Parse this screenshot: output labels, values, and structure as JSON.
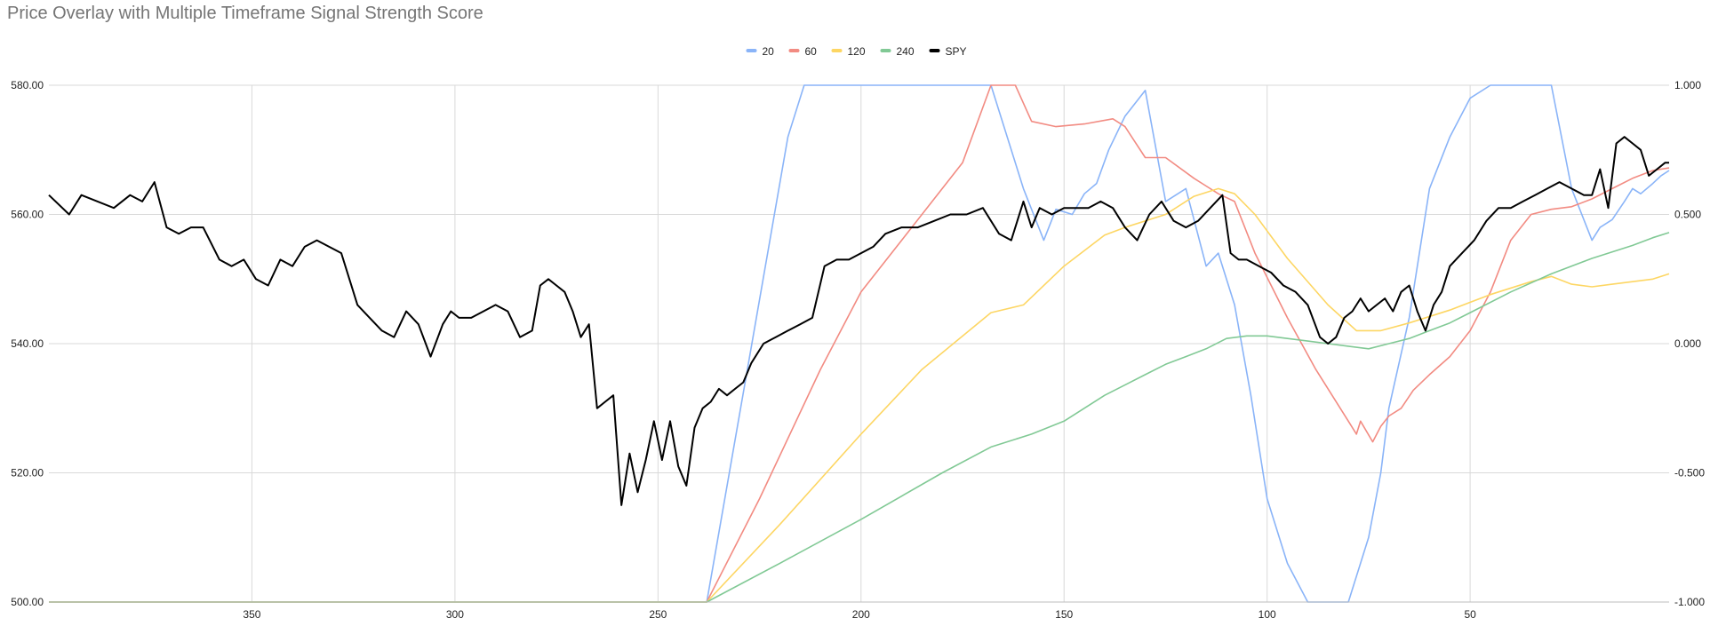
{
  "chart_data": {
    "type": "line",
    "title": "Price Overlay with Multiple Timeframe Signal Strength Score",
    "xlabel": "",
    "ylabel": "",
    "x_reversed": true,
    "xlim": [
      400,
      1
    ],
    "x_ticks": [
      350,
      300,
      250,
      200,
      150,
      100,
      50
    ],
    "x_tick_labels": [
      "350",
      "300",
      "250",
      "200",
      "150",
      "100",
      "50"
    ],
    "y_left": {
      "lim": [
        500,
        580
      ],
      "ticks": [
        500,
        520,
        540,
        560,
        580
      ],
      "tick_labels": [
        "500.00",
        "520.00",
        "540.00",
        "560.00",
        "580.00"
      ]
    },
    "y_right": {
      "lim": [
        -1,
        1
      ],
      "ticks": [
        -1,
        -0.5,
        0,
        0.5,
        1
      ],
      "tick_labels": [
        "-1.000",
        "-0.500",
        "0.000",
        "0.500",
        "1.000"
      ]
    },
    "grid": true,
    "legend_position": "top-center",
    "series": [
      {
        "name": "20",
        "axis": "right",
        "color": "#8ab4f8",
        "x": [
          400,
          238,
          228,
          218,
          214,
          200,
          180,
          168,
          160,
          155,
          152,
          148,
          145,
          142,
          139,
          135,
          130,
          125,
          120,
          115,
          112,
          108,
          104,
          100,
          95,
          90,
          85,
          80,
          75,
          72,
          70,
          65,
          60,
          55,
          50,
          45,
          40,
          35,
          30,
          25,
          20,
          18,
          15,
          12,
          10,
          8,
          5,
          3,
          1
        ],
        "y": [
          -1,
          -1,
          -0.1,
          0.8,
          1,
          1,
          1,
          1,
          0.6,
          0.4,
          0.52,
          0.5,
          0.58,
          0.62,
          0.75,
          0.88,
          0.98,
          0.55,
          0.6,
          0.3,
          0.35,
          0.15,
          -0.2,
          -0.6,
          -0.85,
          -1,
          -1,
          -1,
          -0.75,
          -0.5,
          -0.25,
          0.1,
          0.6,
          0.8,
          0.95,
          1,
          1,
          1,
          1,
          0.6,
          0.4,
          0.45,
          0.48,
          0.55,
          0.6,
          0.58,
          0.62,
          0.65,
          0.67
        ]
      },
      {
        "name": "60",
        "axis": "right",
        "color": "#f28b82",
        "x": [
          400,
          238,
          225,
          210,
          200,
          190,
          175,
          168,
          162,
          158,
          152,
          145,
          138,
          135,
          130,
          125,
          118,
          115,
          112,
          108,
          103,
          95,
          88,
          80,
          78,
          77,
          74,
          72,
          70,
          67,
          64,
          60,
          55,
          50,
          45,
          40,
          35,
          30,
          25,
          20,
          15,
          10,
          5,
          1
        ],
        "y": [
          -1,
          -1,
          -0.6,
          -0.1,
          0.2,
          0.4,
          0.7,
          1,
          1,
          0.86,
          0.84,
          0.85,
          0.87,
          0.84,
          0.72,
          0.72,
          0.64,
          0.61,
          0.58,
          0.55,
          0.35,
          0.1,
          -0.1,
          -0.3,
          -0.35,
          -0.3,
          -0.38,
          -0.32,
          -0.28,
          -0.25,
          -0.18,
          -0.12,
          -0.05,
          0.05,
          0.2,
          0.4,
          0.5,
          0.52,
          0.53,
          0.56,
          0.6,
          0.64,
          0.67,
          0.68
        ]
      },
      {
        "name": "120",
        "axis": "right",
        "color": "#fdd663",
        "x": [
          400,
          238,
          220,
          200,
          185,
          168,
          160,
          150,
          140,
          135,
          125,
          118,
          112,
          108,
          103,
          95,
          85,
          78,
          72,
          65,
          55,
          45,
          35,
          30,
          25,
          20,
          15,
          10,
          5,
          1
        ],
        "y": [
          -1,
          -1,
          -0.7,
          -0.35,
          -0.1,
          0.12,
          0.15,
          0.3,
          0.42,
          0.45,
          0.5,
          0.57,
          0.6,
          0.58,
          0.5,
          0.33,
          0.15,
          0.05,
          0.05,
          0.08,
          0.13,
          0.19,
          0.24,
          0.26,
          0.23,
          0.22,
          0.23,
          0.24,
          0.25,
          0.27
        ]
      },
      {
        "name": "240",
        "axis": "right",
        "color": "#81c995",
        "x": [
          400,
          238,
          220,
          200,
          180,
          168,
          158,
          150,
          140,
          130,
          125,
          120,
          115,
          110,
          105,
          100,
          95,
          90,
          85,
          80,
          75,
          70,
          65,
          60,
          55,
          50,
          40,
          30,
          20,
          10,
          5,
          1
        ],
        "y": [
          -1,
          -1,
          -0.85,
          -0.68,
          -0.5,
          -0.4,
          -0.35,
          -0.3,
          -0.2,
          -0.12,
          -0.08,
          -0.05,
          -0.02,
          0.02,
          0.03,
          0.03,
          0.02,
          0.01,
          0.0,
          -0.01,
          -0.02,
          0.0,
          0.02,
          0.05,
          0.08,
          0.12,
          0.2,
          0.27,
          0.33,
          0.38,
          0.41,
          0.43
        ]
      },
      {
        "name": "SPY",
        "axis": "left",
        "color": "#000000",
        "x": [
          400,
          395,
          392,
          388,
          384,
          380,
          377,
          374,
          371,
          368,
          365,
          362,
          358,
          355,
          352,
          349,
          346,
          343,
          340,
          337,
          334,
          331,
          328,
          324,
          321,
          318,
          315,
          312,
          309,
          306,
          303,
          301,
          299,
          296,
          293,
          290,
          287,
          284,
          281,
          279,
          277,
          275,
          273,
          271,
          269,
          267,
          265,
          263,
          261,
          259,
          257,
          255,
          253,
          251,
          249,
          247,
          245,
          243,
          241,
          239,
          237,
          235,
          233,
          231,
          229,
          227,
          224,
          221,
          218,
          215,
          212,
          209,
          206,
          203,
          200,
          197,
          194,
          190,
          186,
          182,
          178,
          174,
          170,
          166,
          163,
          160,
          158,
          156,
          153,
          150,
          147,
          144,
          141,
          138,
          135,
          132,
          129,
          126,
          123,
          120,
          117,
          114,
          111,
          109,
          107,
          105,
          102,
          99,
          96,
          93,
          90,
          87,
          85,
          83,
          81,
          79,
          77,
          75,
          73,
          71,
          69,
          67,
          65,
          63,
          61,
          59,
          57,
          55,
          52,
          49,
          46,
          43,
          40,
          37,
          34,
          31,
          28,
          25,
          22,
          20,
          18,
          16,
          14,
          12,
          10,
          8,
          6,
          4,
          2,
          1
        ],
        "y": [
          563,
          560,
          563,
          562,
          561,
          563,
          562,
          565,
          558,
          557,
          558,
          558,
          553,
          552,
          553,
          550,
          549,
          553,
          552,
          555,
          556,
          555,
          554,
          546,
          544,
          542,
          541,
          545,
          543,
          538,
          543,
          545,
          544,
          544,
          545,
          546,
          545,
          541,
          542,
          549,
          550,
          549,
          548,
          545,
          541,
          543,
          530,
          531,
          532,
          515,
          523,
          517,
          522,
          528,
          522,
          528,
          521,
          518,
          527,
          530,
          531,
          533,
          532,
          533,
          534,
          537,
          540,
          541,
          542,
          543,
          544,
          552,
          553,
          553,
          554,
          555,
          557,
          558,
          558,
          559,
          560,
          560,
          561,
          557,
          556,
          562,
          558,
          561,
          560,
          561,
          561,
          561,
          562,
          561,
          558,
          556,
          560,
          562,
          559,
          558,
          559,
          561,
          563,
          554,
          553,
          553,
          552,
          551,
          549,
          548,
          546,
          541,
          540,
          541,
          544,
          545,
          547,
          545,
          546,
          547,
          545,
          548,
          549,
          545,
          542,
          546,
          548,
          552,
          554,
          556,
          559,
          561,
          561,
          562,
          563,
          564,
          565,
          564,
          563,
          563,
          567,
          561,
          571,
          572,
          571,
          570,
          566,
          567,
          568,
          568
        ]
      }
    ]
  }
}
